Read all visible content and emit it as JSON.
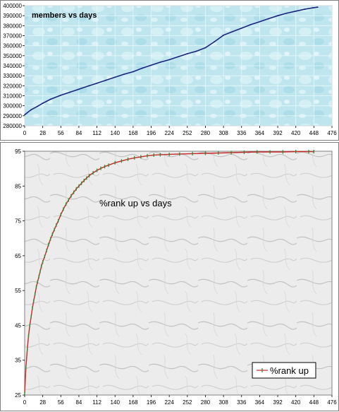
{
  "colors": {
    "water_bg": "#bfe6ef",
    "water_grid": "#e8f7fb",
    "series1": "#1a237e",
    "marble_bg": "#ececec",
    "series2_line": "#c62828",
    "series2_marker": "#2e8b2e"
  },
  "chart_data": [
    {
      "type": "line",
      "title": "members vs days",
      "xlabel": "",
      "ylabel": "",
      "xlim": [
        0,
        476
      ],
      "ylim": [
        280000,
        400000
      ],
      "xticks": [
        0,
        28,
        56,
        84,
        112,
        140,
        168,
        196,
        224,
        252,
        280,
        308,
        336,
        364,
        392,
        420,
        448,
        476
      ],
      "yticks": [
        280000,
        290000,
        300000,
        310000,
        320000,
        330000,
        340000,
        350000,
        360000,
        370000,
        380000,
        390000,
        400000
      ],
      "ytick_labels": [
        "280000",
        "290000",
        "300000",
        "310000",
        "320000",
        "330000",
        "340000",
        "350000",
        "360000",
        "370000",
        "380000",
        "390000",
        "400000"
      ],
      "grid": true,
      "legend": "none",
      "series": [
        {
          "x": [
            0,
            10,
            20,
            28,
            40,
            56,
            70,
            84,
            100,
            112,
            126,
            140,
            154,
            168,
            182,
            196,
            210,
            224,
            238,
            252,
            266,
            280,
            294,
            308,
            322,
            336,
            350,
            364,
            378,
            392,
            406,
            420,
            434,
            448,
            454
          ],
          "y": [
            291000,
            296000,
            299500,
            302500,
            306500,
            310500,
            313500,
            316500,
            320000,
            322500,
            325500,
            328500,
            331500,
            334000,
            337500,
            340500,
            343500,
            346000,
            349000,
            352000,
            354500,
            358000,
            364000,
            370500,
            374000,
            377500,
            381000,
            384000,
            387000,
            390000,
            392500,
            394500,
            396500,
            398000,
            398500
          ]
        }
      ]
    },
    {
      "type": "line",
      "title": "%rank up vs days",
      "xlabel": "",
      "ylabel": "",
      "xlim": [
        0,
        476
      ],
      "ylim": [
        25,
        95
      ],
      "xticks": [
        0,
        28,
        56,
        84,
        112,
        140,
        168,
        196,
        224,
        252,
        280,
        308,
        336,
        364,
        392,
        420,
        448,
        476
      ],
      "yticks": [
        25,
        35,
        45,
        55,
        65,
        75,
        85,
        95
      ],
      "grid": false,
      "legend": "bottom-right",
      "series": [
        {
          "name": "%rank up",
          "x": [
            0,
            2,
            4,
            6,
            8,
            10,
            12,
            14,
            16,
            18,
            20,
            22,
            24,
            26,
            28,
            31,
            34,
            37,
            40,
            43,
            46,
            49,
            52,
            56,
            60,
            64,
            68,
            72,
            76,
            80,
            84,
            88,
            92,
            96,
            100,
            106,
            112,
            118,
            124,
            130,
            140,
            150,
            160,
            170,
            180,
            190,
            200,
            210,
            224,
            240,
            260,
            280,
            300,
            320,
            340,
            360,
            380,
            400,
            420,
            440,
            448
          ],
          "y": [
            25.5,
            33,
            38,
            42,
            45,
            47.5,
            50,
            52,
            54,
            56,
            57.5,
            59,
            60.5,
            62,
            63.2,
            64.8,
            66.5,
            68.2,
            69.8,
            71.2,
            72.5,
            73.8,
            75,
            76.8,
            78.4,
            79.8,
            81,
            82.2,
            83.2,
            84.2,
            85,
            85.8,
            86.6,
            87.3,
            88,
            88.8,
            89.5,
            90.1,
            90.6,
            91,
            91.7,
            92.2,
            92.7,
            93.1,
            93.4,
            93.7,
            93.9,
            94,
            94.1,
            94.2,
            94.3,
            94.4,
            94.5,
            94.6,
            94.7,
            94.8,
            94.8,
            94.8,
            94.9,
            94.9,
            94.9
          ]
        }
      ]
    }
  ]
}
